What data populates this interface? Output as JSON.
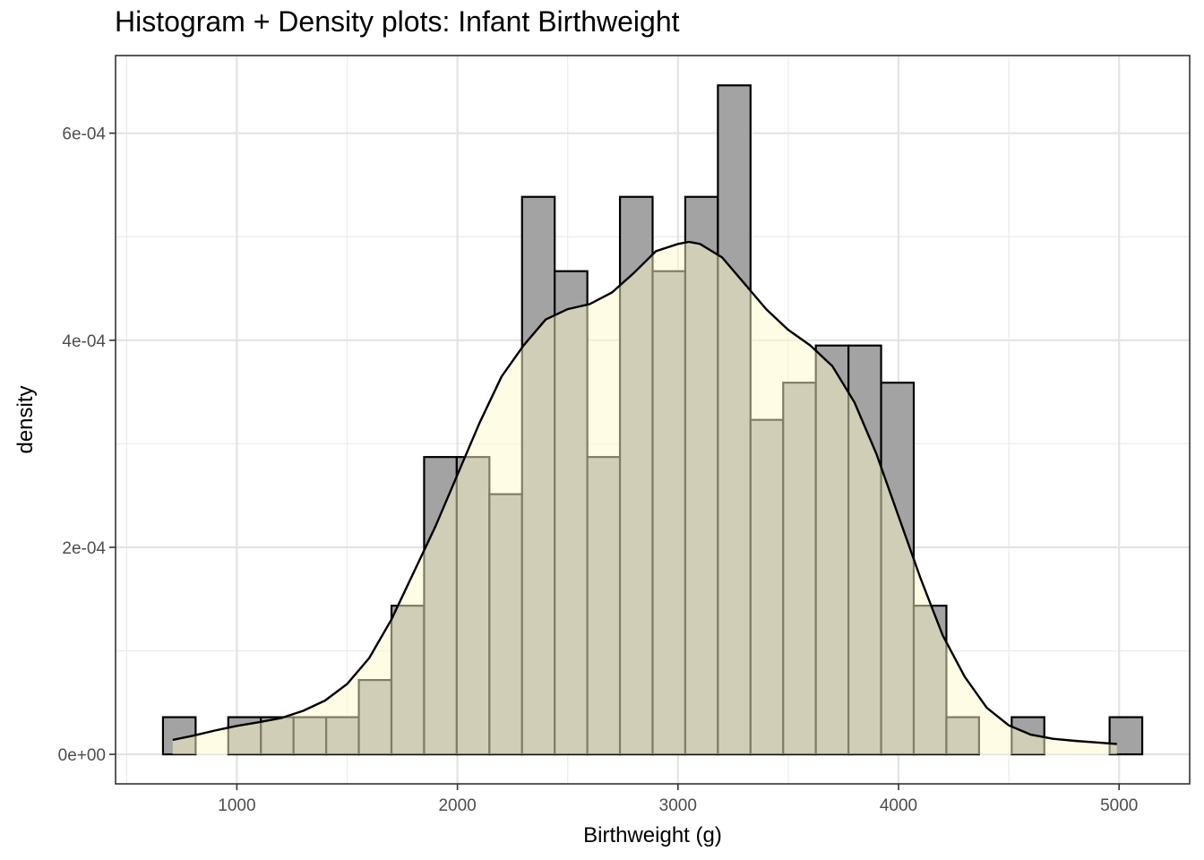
{
  "chart_data": {
    "type": "histogram+density",
    "title": "Histogram + Density plots: Infant Birthweight",
    "xlabel": "Birthweight (g)",
    "ylabel": "density",
    "xlim": [
      450,
      5320
    ],
    "ylim": [
      -2.85e-05,
      0.000675
    ],
    "x_ticks": [
      {
        "value": 1000,
        "label": "1000"
      },
      {
        "value": 2000,
        "label": "2000"
      },
      {
        "value": 3000,
        "label": "3000"
      },
      {
        "value": 4000,
        "label": "4000"
      },
      {
        "value": 5000,
        "label": "5000"
      }
    ],
    "y_ticks": [
      {
        "value": 0,
        "label": "0e+00"
      },
      {
        "value": 0.0002,
        "label": "2e-04"
      },
      {
        "value": 0.0004,
        "label": "4e-04"
      },
      {
        "value": 0.0006,
        "label": "6e-04"
      }
    ],
    "minor_x": [
      500,
      1500,
      2500,
      3500,
      4500
    ],
    "minor_y": [
      0.0001,
      0.0003,
      0.0005
    ],
    "histogram": {
      "bin_start": 665,
      "bin_width": 148,
      "values": [
        3.59e-05,
        0,
        3.59e-05,
        3.59e-05,
        3.59e-05,
        3.59e-05,
        7.18e-05,
        0.0001436,
        0.0002872,
        0.0002872,
        0.0002513,
        0.0005385,
        0.0004667,
        0.0002872,
        0.0005385,
        0.0004667,
        0.0005385,
        0.0006462,
        0.0003231,
        0.000359,
        0.0003949,
        0.0003949,
        0.000359,
        0.0001436,
        3.59e-05,
        0,
        3.59e-05,
        0,
        0,
        3.59e-05
      ],
      "fill": "#a3a3a3",
      "stroke": "#000000"
    },
    "density": {
      "x": [
        709,
        800,
        900,
        1000,
        1100,
        1200,
        1300,
        1400,
        1500,
        1600,
        1700,
        1800,
        1900,
        2000,
        2100,
        2200,
        2300,
        2400,
        2500,
        2600,
        2700,
        2800,
        2900,
        3000,
        3050,
        3100,
        3200,
        3300,
        3400,
        3500,
        3600,
        3700,
        3800,
        3900,
        4000,
        4100,
        4200,
        4300,
        4400,
        4500,
        4600,
        4700,
        4800,
        4900,
        4990
      ],
      "y": [
        1.4e-05,
        1.8e-05,
        2.3e-05,
        2.75e-05,
        3.1e-05,
        3.5e-05,
        4.2e-05,
        5.2e-05,
        6.8e-05,
        9.3e-05,
        0.00013,
        0.000175,
        0.00022,
        0.00027,
        0.00032,
        0.000365,
        0.000395,
        0.00042,
        0.00043,
        0.000435,
        0.000446,
        0.000465,
        0.000486,
        0.000493,
        0.000495,
        0.000493,
        0.00048,
        0.000455,
        0.00043,
        0.00041,
        0.000395,
        0.000375,
        0.00034,
        0.00029,
        0.00023,
        0.00017,
        0.000115,
        7.5e-05,
        4.5e-05,
        2.8e-05,
        1.9e-05,
        1.5e-05,
        1.3e-05,
        1.15e-05,
        1e-05
      ],
      "fill": "#fffacd",
      "fill_opacity": 0.5,
      "stroke": "#000000"
    }
  }
}
